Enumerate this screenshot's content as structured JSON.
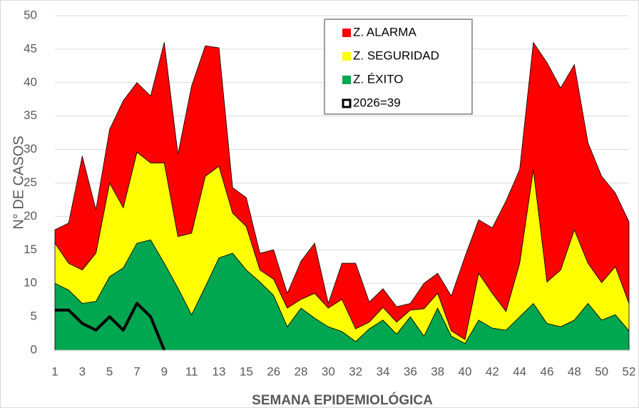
{
  "chart_data": {
    "type": "stacked_area",
    "ylabel": "N° DE CASOS",
    "xlabel": "SEMANA EPIDEMIOLÓGICA",
    "categories": [
      "1",
      null,
      "3",
      null,
      "5",
      null,
      "7",
      null,
      "9",
      null,
      "11",
      null,
      "13",
      null,
      "15",
      null,
      "26",
      null,
      "28",
      null,
      "30",
      null,
      "32",
      null,
      "34",
      null,
      "36",
      null,
      "38",
      null,
      "40",
      null,
      "42",
      null,
      "44",
      null,
      "46",
      null,
      "48",
      null,
      "50",
      null,
      "52"
    ],
    "series": [
      {
        "name": "Z. ALARMA",
        "color": "#ff0000",
        "values": [
          2,
          6,
          17,
          6.5,
          8,
          16,
          10.4,
          10,
          18,
          12.3,
          22,
          19.5,
          17.7,
          3.8,
          4.3,
          2.5,
          4.4,
          2.2,
          5.7,
          7.5,
          0.7,
          5.4,
          9.8,
          3,
          2.8,
          2.3,
          1,
          3.8,
          3,
          5.2,
          12.4,
          8,
          9.8,
          16.5,
          14,
          19,
          32.8,
          27.2,
          24.7,
          18,
          15.9,
          11,
          12.2
        ]
      },
      {
        "name": "Z. SEGURIDAD",
        "color": "#ffff00",
        "values": [
          6,
          4,
          5,
          7.2,
          14,
          9,
          13.6,
          11.5,
          15,
          7.7,
          12.2,
          16.5,
          13.7,
          6,
          6.5,
          1.8,
          2.4,
          2.8,
          1.3,
          3.7,
          2.8,
          4.8,
          1.9,
          1,
          1.9,
          1.8,
          1,
          4.1,
          2.2,
          0.8,
          0.6,
          7,
          5.2,
          2.8,
          8,
          20,
          6.2,
          8.5,
          13.5,
          6,
          5.6,
          7.2,
          4.1
        ]
      },
      {
        "name": "Z. ÉXITO",
        "color": "#00a650",
        "values": [
          10,
          9,
          7,
          7.3,
          11,
          12.3,
          16,
          16.5,
          13,
          9.3,
          5.3,
          9.5,
          13.8,
          14.5,
          12,
          10.2,
          8.2,
          3.5,
          6.3,
          4.8,
          3.5,
          2.8,
          1.3,
          3.2,
          4.5,
          2.4,
          5,
          2.1,
          6.3,
          2.1,
          1,
          4.5,
          3.3,
          3,
          5,
          7,
          4,
          3.5,
          4.5,
          7,
          4.5,
          5.3,
          2.9
        ]
      },
      {
        "name": "2026=39",
        "color": "#000000",
        "line": true,
        "values": [
          6,
          6,
          4,
          3,
          5,
          3,
          7,
          5,
          0,
          null,
          null,
          null,
          null,
          null,
          null,
          null,
          null,
          null,
          null,
          null,
          null,
          null,
          null,
          null,
          null,
          null,
          null,
          null,
          null,
          null,
          null,
          null,
          null,
          null,
          null,
          null,
          null,
          null,
          null,
          null,
          null,
          null,
          null
        ]
      }
    ],
    "ylim": [
      0,
      50
    ],
    "yticks": [
      0,
      5,
      10,
      15,
      20,
      25,
      30,
      35,
      40,
      45,
      50
    ],
    "grid": true
  }
}
